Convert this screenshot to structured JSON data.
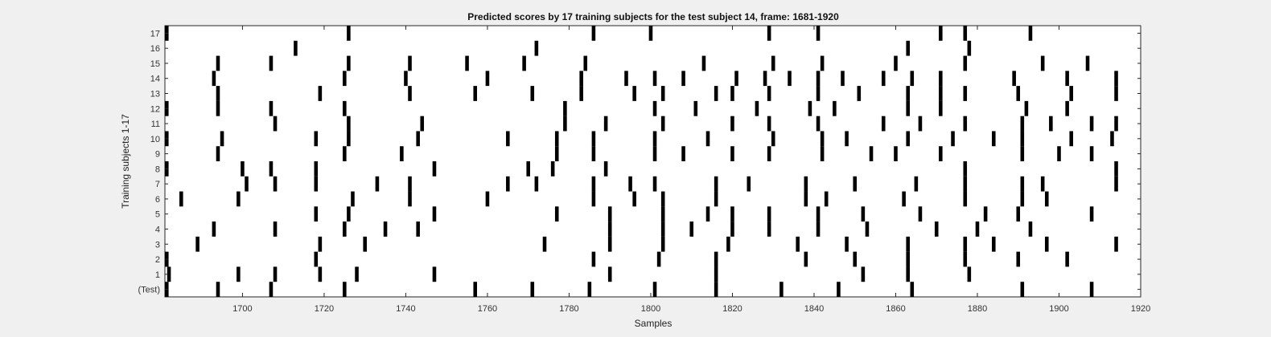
{
  "chart_data": {
    "type": "raster",
    "title": "Predicted scores by 17 training subjects for the test subject 14, frame: 1681-1920",
    "xlabel": "Samples",
    "ylabel": "Training subjects 1-17",
    "xlim": [
      1681,
      1920
    ],
    "x_ticks": [
      1700,
      1720,
      1740,
      1760,
      1780,
      1800,
      1820,
      1840,
      1860,
      1880,
      1900,
      1920
    ],
    "y_tick_labels": [
      "(Test)",
      "1",
      "2",
      "3",
      "4",
      "5",
      "6",
      "7",
      "8",
      "9",
      "10",
      "11",
      "12",
      "13",
      "14",
      "15",
      "16",
      "17"
    ],
    "rows": [
      {
        "label": "(Test)",
        "events": [
          1681,
          1694,
          1707,
          1725,
          1757,
          1771,
          1785,
          1801,
          1816,
          1832,
          1846,
          1864,
          1891,
          1908
        ]
      },
      {
        "label": "1",
        "events": [
          1682,
          1699,
          1708,
          1719,
          1728,
          1747,
          1790,
          1816,
          1852,
          1863,
          1878
        ]
      },
      {
        "label": "2",
        "events": [
          1681,
          1718,
          1786,
          1802,
          1816,
          1838,
          1850,
          1863,
          1877,
          1890,
          1902
        ]
      },
      {
        "label": "3",
        "events": [
          1689,
          1719,
          1730,
          1774,
          1790,
          1803,
          1819,
          1836,
          1848,
          1863,
          1877,
          1884,
          1897,
          1914
        ]
      },
      {
        "label": "4",
        "events": [
          1693,
          1708,
          1725,
          1735,
          1743,
          1790,
          1803,
          1810,
          1820,
          1829,
          1841,
          1853,
          1870,
          1880,
          1893
        ]
      },
      {
        "label": "5",
        "events": [
          1718,
          1726,
          1747,
          1777,
          1790,
          1803,
          1814,
          1820,
          1829,
          1841,
          1852,
          1866,
          1882,
          1890,
          1908
        ]
      },
      {
        "label": "6",
        "events": [
          1685,
          1699,
          1727,
          1741,
          1760,
          1786,
          1796,
          1803,
          1816,
          1838,
          1843,
          1862,
          1877,
          1891,
          1897
        ]
      },
      {
        "label": "7",
        "events": [
          1701,
          1708,
          1718,
          1733,
          1741,
          1765,
          1772,
          1786,
          1795,
          1801,
          1816,
          1824,
          1838,
          1850,
          1865,
          1877,
          1891,
          1896,
          1914
        ]
      },
      {
        "label": "8",
        "events": [
          1681,
          1700,
          1707,
          1718,
          1747,
          1770,
          1776,
          1789,
          1877,
          1914
        ]
      },
      {
        "label": "9",
        "events": [
          1694,
          1725,
          1739,
          1777,
          1786,
          1801,
          1808,
          1820,
          1829,
          1842,
          1854,
          1860,
          1871,
          1891,
          1900,
          1908
        ]
      },
      {
        "label": "10",
        "events": [
          1681,
          1695,
          1718,
          1726,
          1743,
          1765,
          1777,
          1786,
          1801,
          1814,
          1830,
          1842,
          1848,
          1863,
          1874,
          1884,
          1891,
          1903,
          1913
        ]
      },
      {
        "label": "11",
        "events": [
          1708,
          1726,
          1744,
          1779,
          1789,
          1803,
          1820,
          1829,
          1841,
          1857,
          1866,
          1877,
          1891,
          1898,
          1908,
          1914
        ]
      },
      {
        "label": "12",
        "events": [
          1681,
          1694,
          1707,
          1725,
          1779,
          1801,
          1811,
          1826,
          1839,
          1845,
          1863,
          1871,
          1892,
          1902
        ]
      },
      {
        "label": "13",
        "events": [
          1694,
          1719,
          1741,
          1757,
          1771,
          1783,
          1796,
          1803,
          1816,
          1820,
          1829,
          1841,
          1851,
          1863,
          1871,
          1877,
          1890,
          1903,
          1914
        ]
      },
      {
        "label": "14",
        "events": [
          1693,
          1725,
          1740,
          1760,
          1783,
          1794,
          1801,
          1808,
          1821,
          1828,
          1834,
          1841,
          1847,
          1857,
          1864,
          1871,
          1889,
          1902,
          1914
        ]
      },
      {
        "label": "15",
        "events": [
          1694,
          1707,
          1726,
          1741,
          1755,
          1769,
          1784,
          1813,
          1830,
          1842,
          1860,
          1877,
          1896,
          1907
        ]
      },
      {
        "label": "16",
        "events": [
          1713,
          1772,
          1863,
          1878
        ]
      },
      {
        "label": "17",
        "events": [
          1681,
          1726,
          1786,
          1800,
          1829,
          1841,
          1871,
          1877,
          1893
        ]
      }
    ],
    "colors": {
      "background": "#f0f0f0",
      "plot_area": "#ffffff",
      "events": "#000000"
    },
    "grid": false,
    "legend": false
  }
}
